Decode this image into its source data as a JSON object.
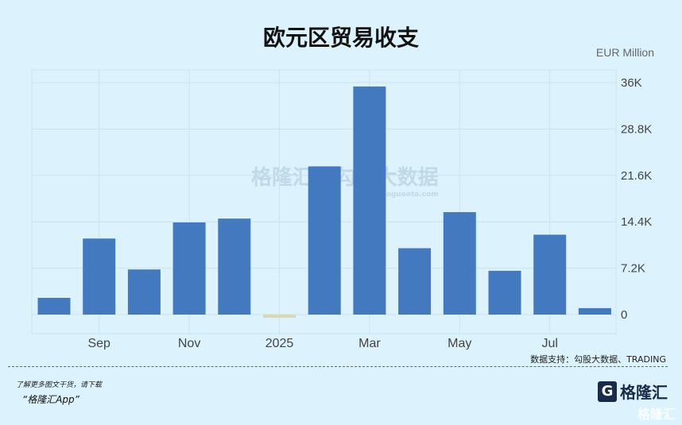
{
  "header": {
    "title": "欧元区贸易收支",
    "unit": "EUR Million"
  },
  "watermark": {
    "brand": "格隆汇",
    "data": "勾股大数据",
    "site": "www.goguoata.com"
  },
  "source": "数据支持：勾股大数据、TRADING",
  "footer": {
    "line1": "了解更多图文干货，请下载",
    "line2": "“格隆汇App”",
    "logo": "格隆汇",
    "logo_mark": "G"
  },
  "colors": {
    "positive": "#4379bf",
    "negative": "#d9d9b0",
    "grid": "#c9e3ef"
  },
  "chart_data": {
    "type": "bar",
    "title": "欧元区贸易收支",
    "ylabel": "EUR Million",
    "categories": [
      "2024-08",
      "2024-09",
      "2024-10",
      "2024-11",
      "2024-12",
      "2025-01",
      "2025-02",
      "2025-03",
      "2025-04",
      "2025-05",
      "2025-06",
      "2025-07",
      "2025-08"
    ],
    "values": [
      2600,
      11800,
      7000,
      14300,
      14900,
      -500,
      23000,
      35400,
      10300,
      15900,
      6800,
      12400,
      1000
    ],
    "x_tick_labels": [
      {
        "label": "Sep",
        "index": 1
      },
      {
        "label": "Nov",
        "index": 3
      },
      {
        "label": "2025",
        "index": 5
      },
      {
        "label": "Mar",
        "index": 7
      },
      {
        "label": "May",
        "index": 9
      },
      {
        "label": "Jul",
        "index": 11
      }
    ],
    "y_ticks": [
      {
        "v": 0,
        "label": "0"
      },
      {
        "v": 7200,
        "label": "7.2K"
      },
      {
        "v": 14400,
        "label": "14.4K"
      },
      {
        "v": 21600,
        "label": "21.6K"
      },
      {
        "v": 28800,
        "label": "28.8K"
      },
      {
        "v": 36000,
        "label": "36K"
      }
    ],
    "ylim": [
      -3000,
      38000
    ],
    "grid": true,
    "y_axis_side": "right"
  }
}
